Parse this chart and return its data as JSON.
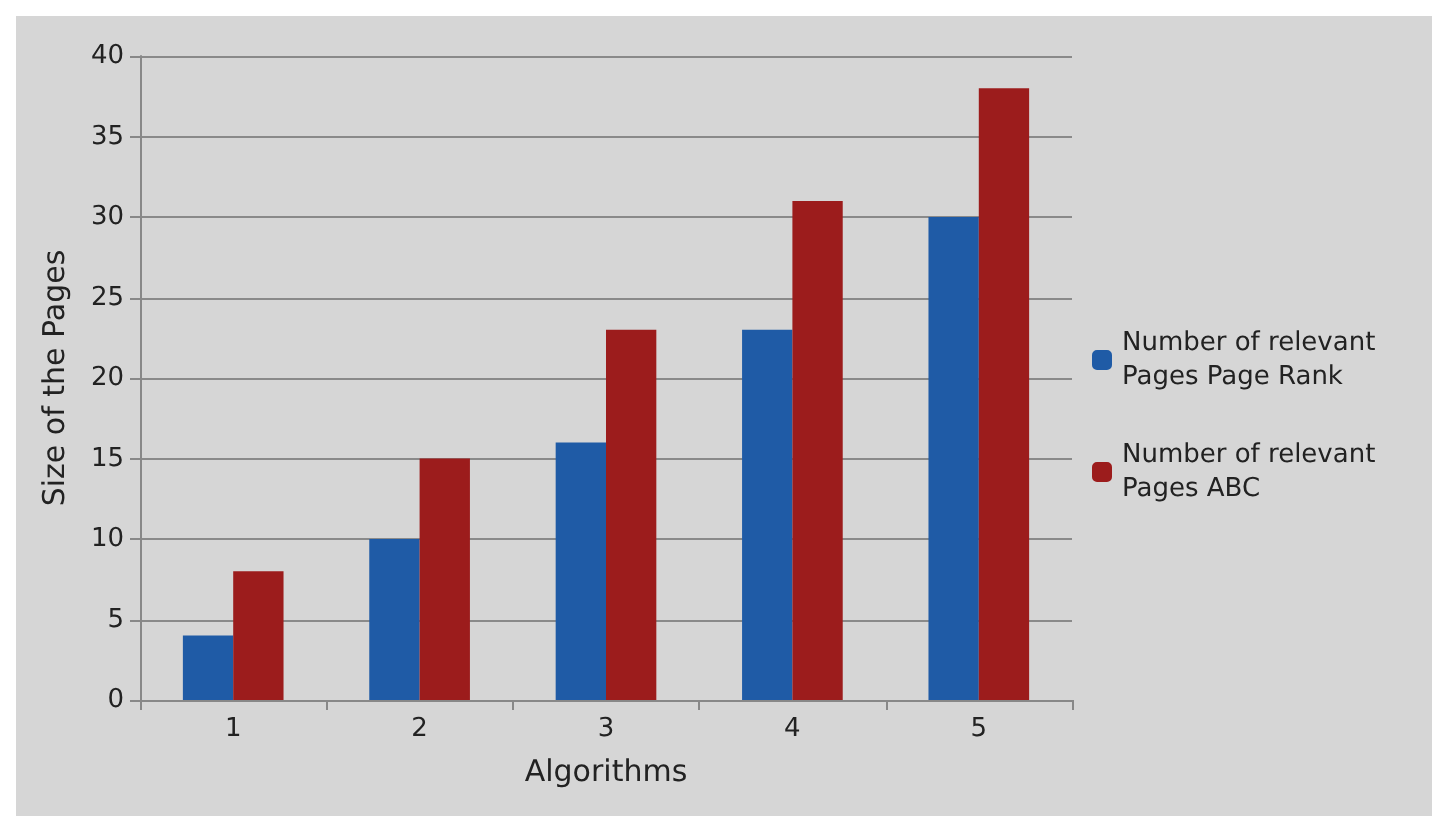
{
  "chart_data": {
    "type": "bar",
    "xlabel": "Algorithms",
    "ylabel": "Size of the Pages",
    "categories": [
      "1",
      "2",
      "3",
      "4",
      "5"
    ],
    "series": [
      {
        "name": "Number of relevant Pages Page Rank",
        "color": "#1f5ba6",
        "values": [
          4,
          10,
          16,
          23,
          30
        ]
      },
      {
        "name": "Number of relevant Pages ABC",
        "color": "#9c1c1c",
        "values": [
          8,
          15,
          23,
          31,
          38
        ]
      }
    ],
    "ylim": [
      0,
      40
    ],
    "yticks": [
      0,
      5,
      10,
      15,
      20,
      25,
      30,
      35,
      40
    ],
    "grid": "y",
    "legend": "right"
  }
}
